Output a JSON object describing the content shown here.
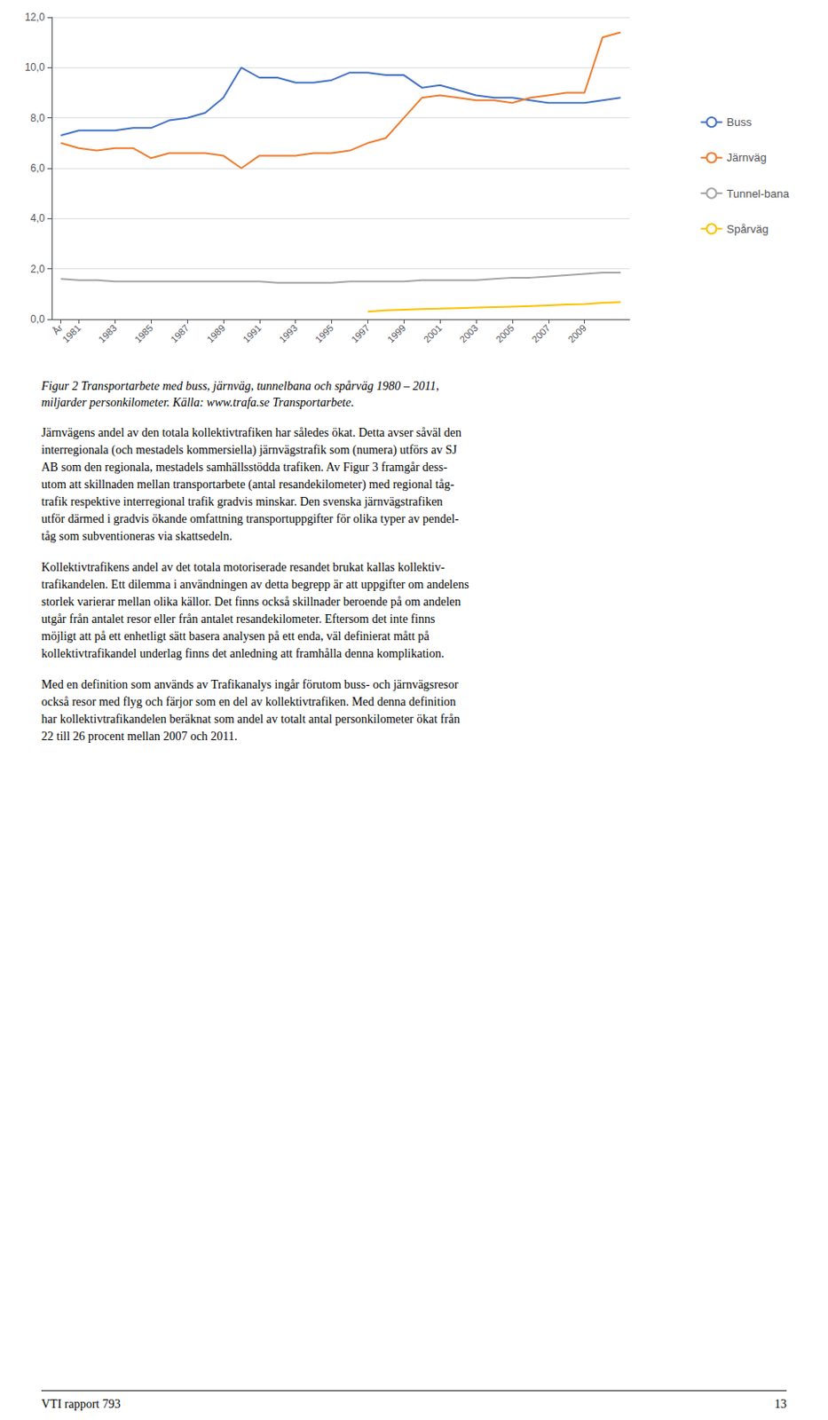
{
  "chart_data": {
    "type": "line",
    "x": [
      1980,
      1981,
      1982,
      1983,
      1984,
      1985,
      1986,
      1987,
      1988,
      1989,
      1990,
      1991,
      1992,
      1993,
      1994,
      1995,
      1996,
      1997,
      1998,
      1999,
      2000,
      2001,
      2002,
      2003,
      2004,
      2005,
      2006,
      2007,
      2008,
      2009,
      2010,
      2011
    ],
    "series": [
      {
        "name": "Buss",
        "color": "#4472C4",
        "values": [
          7.3,
          7.5,
          7.5,
          7.5,
          7.6,
          7.6,
          7.9,
          8.0,
          8.2,
          8.8,
          10.0,
          9.6,
          9.6,
          9.4,
          9.4,
          9.5,
          9.8,
          9.8,
          9.7,
          9.7,
          9.2,
          9.3,
          9.1,
          8.9,
          8.8,
          8.8,
          8.7,
          8.6,
          8.6,
          8.6,
          8.7,
          8.8
        ]
      },
      {
        "name": "Järnväg",
        "color": "#ED7D31",
        "values": [
          7.0,
          6.8,
          6.7,
          6.8,
          6.8,
          6.4,
          6.6,
          6.6,
          6.6,
          6.5,
          6.0,
          6.5,
          6.5,
          6.5,
          6.6,
          6.6,
          6.7,
          7.0,
          7.2,
          8.0,
          8.8,
          8.9,
          8.8,
          8.7,
          8.7,
          8.6,
          8.8,
          8.9,
          9.0,
          9.0,
          11.2,
          11.4
        ]
      },
      {
        "name": "Tunnel-bana",
        "color": "#A5A5A5",
        "values": [
          1.6,
          1.55,
          1.55,
          1.5,
          1.5,
          1.5,
          1.5,
          1.5,
          1.5,
          1.5,
          1.5,
          1.5,
          1.45,
          1.45,
          1.45,
          1.45,
          1.5,
          1.5,
          1.5,
          1.5,
          1.55,
          1.55,
          1.55,
          1.55,
          1.6,
          1.65,
          1.65,
          1.7,
          1.75,
          1.8,
          1.85,
          1.85
        ]
      },
      {
        "name": "Spårväg",
        "color": "#FFC000",
        "values": [
          null,
          null,
          null,
          null,
          null,
          null,
          null,
          null,
          null,
          null,
          null,
          null,
          null,
          null,
          null,
          null,
          null,
          0.3,
          0.35,
          0.38,
          0.4,
          0.42,
          0.44,
          0.46,
          0.48,
          0.5,
          0.52,
          0.55,
          0.58,
          0.6,
          0.65,
          0.68
        ]
      }
    ],
    "xlim": [
      1979.5,
      2011.5
    ],
    "xticks": [
      {
        "value": 1980,
        "label": "År"
      },
      1981,
      1983,
      1985,
      1987,
      1989,
      1991,
      1993,
      1995,
      1997,
      1999,
      2001,
      2003,
      2005,
      2007,
      2009
    ],
    "ylim": [
      0.0,
      12.0
    ],
    "yticks": [
      {
        "value": 0.0,
        "label": "0,0"
      },
      {
        "value": 2.0,
        "label": "2,0"
      },
      {
        "value": 4.0,
        "label": "4,0"
      },
      {
        "value": 6.0,
        "label": "6,0"
      },
      {
        "value": 8.0,
        "label": "8,0"
      },
      {
        "value": 10.0,
        "label": "10,0"
      },
      {
        "value": 12.0,
        "label": "12,0"
      }
    ],
    "grid": true,
    "legend": "right",
    "caption": [
      "Figur 2 Transportarbete med buss, järnväg, tunnelbana och spårväg 1980 – 2011,",
      "miljarder personkilometer. Källa: www.trafa.se Transportarbete."
    ],
    "body": [
      [
        "Järnvägens andel av den totala kollektivtrafiken har således ökat. Detta avser såväl den",
        "interregionala (och mestadels kommersiella) järnvägstrafik som (numera) utförs av SJ",
        "AB som den regionala, mestadels samhällsstödda trafiken. Av Figur 3 framgår dess-",
        "utom att skillnaden mellan transportarbete (antal resandekilometer) med regional tåg-",
        "trafik respektive interregional trafik gradvis minskar. Den svenska järnvägstrafiken",
        "utför därmed i gradvis ökande omfattning transportuppgifter för olika typer av pendel-",
        "tåg som subventioneras via skattsedeln."
      ],
      [
        "Kollektivtrafikens andel av det totala motoriserade resandet brukat kallas kollektiv-",
        "trafikandelen. Ett dilemma i användningen av detta begrepp är att uppgifter om andelens",
        "storlek varierar mellan olika källor. Det finns också skillnader beroende på om andelen",
        "utgår från antalet resor eller från antalet resandekilometer. Eftersom det inte finns",
        "möjligt att på ett enhetligt sätt basera analysen på ett enda, väl definierat mått på",
        "kollektivtrafikandel underlag finns det anledning att framhålla denna komplikation."
      ],
      [
        "Med en definition som används av Trafikanalys ingår förutom buss- och järnvägsresor",
        "också resor med flyg och färjor som en del av kollektivtrafiken. Med denna definition",
        "har kollektivtrafikandelen beräknat som andel av totalt antal personkilometer ökat från",
        "22 till 26 procent mellan 2007 och 2011."
      ]
    ],
    "footer": [
      "VTI rapport 793",
      "13"
    ]
  }
}
